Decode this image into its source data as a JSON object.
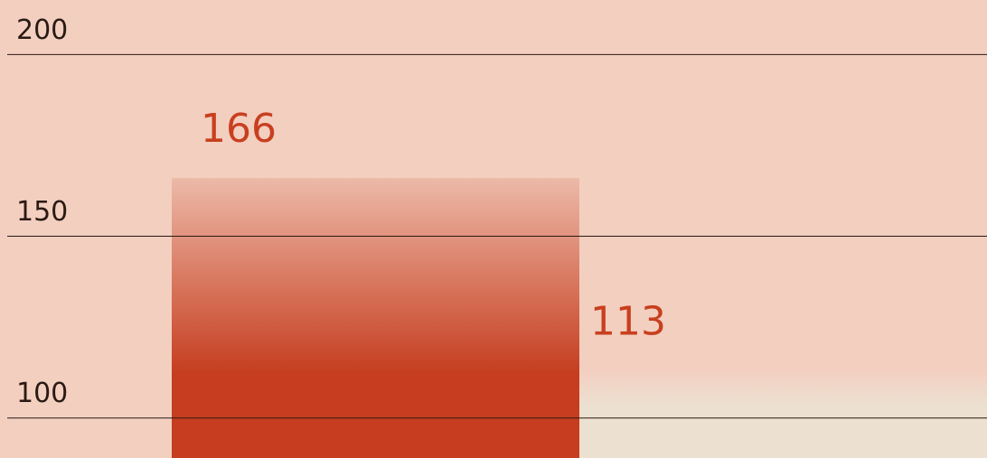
{
  "chart_data": {
    "type": "bar",
    "categories": [
      null,
      null
    ],
    "values": [
      166,
      113
    ],
    "colors": [
      "#c63d1f",
      "#ece0d0"
    ],
    "ylim": [
      89,
      215
    ],
    "yticks": [
      100,
      150,
      200
    ],
    "grid": true
  }
}
